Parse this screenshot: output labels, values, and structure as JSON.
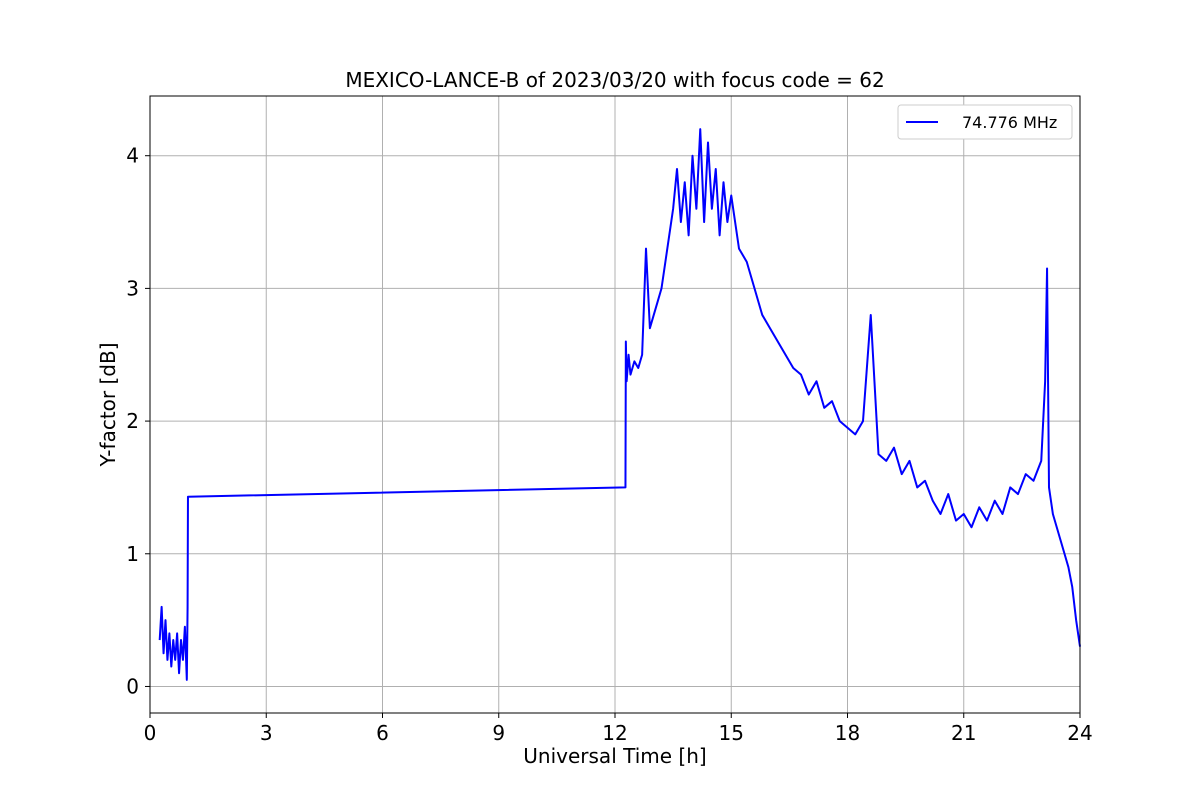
{
  "chart_data": {
    "type": "line",
    "title": "MEXICO-LANCE-B of 2023/03/20 with focus code = 62",
    "xlabel": "Universal Time [h]",
    "ylabel": "Y-factor [dB]",
    "xlim": [
      0,
      24
    ],
    "ylim": [
      -0.2,
      4.45
    ],
    "xticks": [
      0,
      3,
      6,
      9,
      12,
      15,
      18,
      21,
      24
    ],
    "yticks": [
      0,
      1,
      2,
      3,
      4
    ],
    "grid": true,
    "legend_position": "top-right",
    "series": [
      {
        "name": "74.776 MHz",
        "color": "#0000ff",
        "x": [
          0.25,
          0.3,
          0.35,
          0.4,
          0.45,
          0.5,
          0.55,
          0.6,
          0.65,
          0.7,
          0.75,
          0.8,
          0.85,
          0.9,
          0.95,
          0.97,
          0.98,
          12.27,
          12.28,
          12.3,
          12.35,
          12.4,
          12.5,
          12.6,
          12.7,
          12.8,
          12.9,
          13.0,
          13.1,
          13.2,
          13.3,
          13.4,
          13.5,
          13.6,
          13.7,
          13.8,
          13.9,
          14.0,
          14.1,
          14.2,
          14.3,
          14.4,
          14.5,
          14.6,
          14.7,
          14.8,
          14.9,
          15.0,
          15.2,
          15.4,
          15.6,
          15.8,
          16.0,
          16.2,
          16.4,
          16.6,
          16.8,
          17.0,
          17.2,
          17.4,
          17.6,
          17.8,
          18.0,
          18.2,
          18.4,
          18.6,
          18.8,
          19.0,
          19.2,
          19.4,
          19.6,
          19.8,
          20.0,
          20.2,
          20.4,
          20.6,
          20.8,
          21.0,
          21.2,
          21.4,
          21.6,
          21.8,
          22.0,
          22.2,
          22.4,
          22.6,
          22.8,
          23.0,
          23.1,
          23.15,
          23.2,
          23.3,
          23.4,
          23.5,
          23.6,
          23.7,
          23.8,
          23.9,
          24.0
        ],
        "y": [
          0.35,
          0.6,
          0.25,
          0.5,
          0.2,
          0.4,
          0.15,
          0.35,
          0.2,
          0.4,
          0.1,
          0.35,
          0.2,
          0.45,
          0.05,
          0.6,
          1.43,
          1.5,
          2.6,
          2.3,
          2.5,
          2.35,
          2.45,
          2.4,
          2.5,
          3.3,
          2.7,
          2.8,
          2.9,
          3.0,
          3.2,
          3.4,
          3.6,
          3.9,
          3.5,
          3.8,
          3.4,
          4.0,
          3.6,
          4.2,
          3.5,
          4.1,
          3.6,
          3.9,
          3.4,
          3.8,
          3.5,
          3.7,
          3.3,
          3.2,
          3.0,
          2.8,
          2.7,
          2.6,
          2.5,
          2.4,
          2.35,
          2.2,
          2.3,
          2.1,
          2.15,
          2.0,
          1.95,
          1.9,
          2.0,
          2.8,
          1.75,
          1.7,
          1.8,
          1.6,
          1.7,
          1.5,
          1.55,
          1.4,
          1.3,
          1.45,
          1.25,
          1.3,
          1.2,
          1.35,
          1.25,
          1.4,
          1.3,
          1.5,
          1.45,
          1.6,
          1.55,
          1.7,
          2.3,
          3.15,
          1.5,
          1.3,
          1.2,
          1.1,
          1.0,
          0.9,
          0.75,
          0.5,
          0.3
        ]
      }
    ]
  }
}
